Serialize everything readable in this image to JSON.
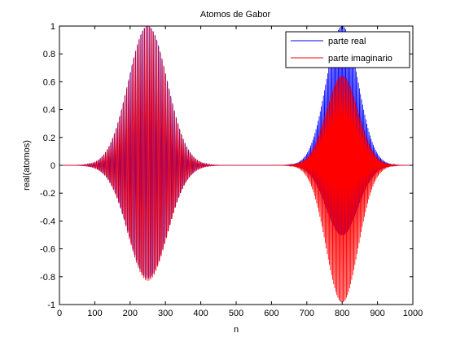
{
  "chart_data": {
    "type": "line",
    "title": "Atomos de Gabor",
    "xlabel": "n",
    "ylabel": "real(atomos)",
    "xlim": [
      0,
      1000
    ],
    "ylim": [
      -1,
      1
    ],
    "xticks": [
      "0",
      "100",
      "200",
      "300",
      "400",
      "500",
      "600",
      "700",
      "800",
      "900",
      "1000"
    ],
    "yticks": [
      "-1",
      "-0.8",
      "-0.6",
      "-0.4",
      "-0.2",
      "0",
      "0.2",
      "0.4",
      "0.6",
      "0.8",
      "1"
    ],
    "grid": false,
    "legend_position": "top-right",
    "series": [
      {
        "name": "parte real",
        "color": "#0000ff",
        "atoms": [
          {
            "center": 250,
            "sigma": 55,
            "amplitude": 1.0,
            "period": 5
          },
          {
            "center": 800,
            "sigma": 45,
            "amplitude": 1.0,
            "period": 3
          }
        ]
      },
      {
        "name": "parte imaginario",
        "color": "#ff0000",
        "atoms": [
          {
            "center": 250,
            "sigma": 55,
            "amplitude": 1.0,
            "period": 5
          },
          {
            "center": 800,
            "sigma": 45,
            "amplitude": 1.0,
            "period": 3
          }
        ]
      }
    ]
  }
}
